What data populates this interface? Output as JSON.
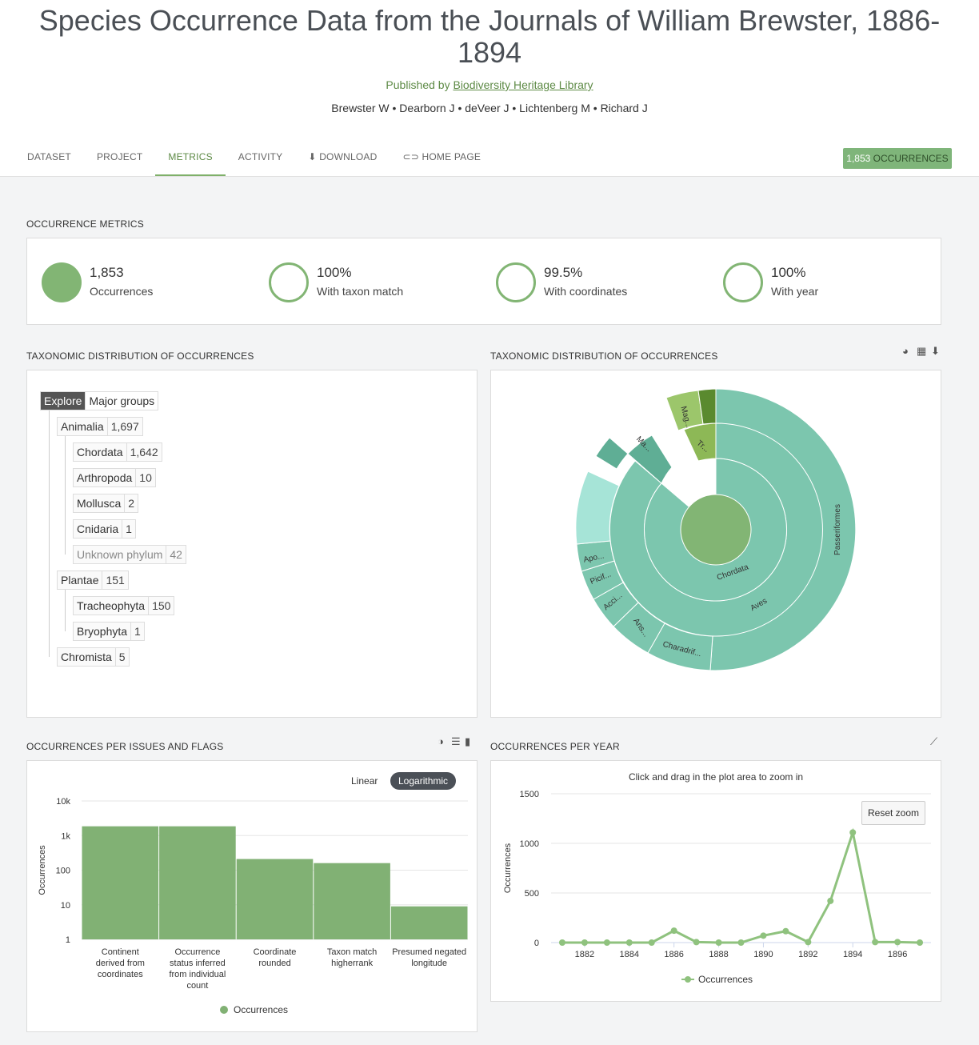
{
  "header": {
    "title": "Species Occurrence Data from the Journals of William Brewster, 1886-1894",
    "published_prefix": "Published by",
    "publisher": "Biodiversity Heritage Library",
    "authors": "Brewster W • Dearborn J • deVeer J • Lichtenberg M • Richard J"
  },
  "tabs": [
    "DATASET",
    "PROJECT",
    "METRICS",
    "ACTIVITY",
    "DOWNLOAD",
    "HOME PAGE"
  ],
  "occurrences_button": {
    "count": "1,853",
    "label": "OCCURRENCES"
  },
  "metrics_section": {
    "title": "OCCURRENCE METRICS",
    "items": [
      {
        "value": "1,853",
        "label": "Occurrences",
        "fraction": 1.0
      },
      {
        "value": "100%",
        "label": "With taxon match",
        "fraction": 1.0
      },
      {
        "value": "99.5%",
        "label": "With coordinates",
        "fraction": 0.995
      },
      {
        "value": "100%",
        "label": "With year",
        "fraction": 1.0
      }
    ]
  },
  "taxonomy_tree": {
    "title": "TAXONOMIC DISTRIBUTION OF OCCURRENCES",
    "tab_explore": "Explore",
    "tab_major": "Major groups",
    "nodes": [
      {
        "name": "Animalia",
        "count": "1,697"
      },
      {
        "name": "Chordata",
        "count": "1,642"
      },
      {
        "name": "Arthropoda",
        "count": "10"
      },
      {
        "name": "Mollusca",
        "count": "2"
      },
      {
        "name": "Cnidaria",
        "count": "1"
      },
      {
        "name": "Unknown phylum",
        "count": "42"
      },
      {
        "name": "Plantae",
        "count": "151"
      },
      {
        "name": "Tracheophyta",
        "count": "150"
      },
      {
        "name": "Bryophyta",
        "count": "1"
      },
      {
        "name": "Chromista",
        "count": "5"
      }
    ]
  },
  "sunburst": {
    "title": "TAXONOMIC DISTRIBUTION OF OCCURRENCES",
    "labels": [
      "Passeriformes",
      "Aves",
      "Chordata",
      "Charadrif...",
      "Ans...",
      "Acci...",
      "Picif...",
      "Apo...",
      "Ma...",
      "Mag...",
      "Tr..."
    ],
    "colors": {
      "animal": "#7cc6ae",
      "plant": "#8db856",
      "center": "#82b574"
    }
  },
  "issues_chart": {
    "title": "OCCURRENCES PER ISSUES AND FLAGS",
    "toggle_linear": "Linear",
    "toggle_log": "Logarithmic",
    "ylabel": "Occurrences",
    "legend": "Occurrences",
    "color": "#81b174"
  },
  "year_chart": {
    "title": "OCCURRENCES PER YEAR",
    "subtitle": "Click and drag in the plot area to zoom in",
    "reset_zoom": "Reset zoom",
    "ylabel": "Occurrences",
    "legend": "Occurrences",
    "color": "#8fc27e"
  },
  "chart_data": [
    {
      "type": "bar",
      "title": "",
      "ylabel": "Occurrences",
      "yscale": "log",
      "ylim": [
        1,
        10000
      ],
      "yticks": [
        "1",
        "10",
        "100",
        "1k",
        "10k"
      ],
      "categories": [
        "Continent derived from coordinates",
        "Occurrence status inferred from individual count",
        "Coordinate rounded",
        "Taxon match higherrank",
        "Presumed negated longitude"
      ],
      "series": [
        {
          "name": "Occurrences",
          "values": [
            1853,
            1853,
            210,
            160,
            9
          ]
        }
      ],
      "legend": "bottom-center",
      "grid": true
    },
    {
      "type": "line",
      "title": "",
      "ylabel": "Occurrences",
      "x": [
        1881,
        1882,
        1883,
        1884,
        1885,
        1886,
        1887,
        1888,
        1889,
        1890,
        1891,
        1892,
        1893,
        1894,
        1895,
        1896,
        1897
      ],
      "series": [
        {
          "name": "Occurrences",
          "values": [
            0,
            0,
            0,
            0,
            0,
            120,
            5,
            0,
            0,
            70,
            115,
            5,
            420,
            1110,
            5,
            5,
            0
          ]
        }
      ],
      "xticks": [
        "1882",
        "1884",
        "1886",
        "1888",
        "1890",
        "1892",
        "1894",
        "1896"
      ],
      "yticks": [
        "0",
        "500",
        "1000",
        "1500"
      ],
      "ylim": [
        0,
        1500
      ],
      "legend": "bottom-center",
      "grid": true
    }
  ]
}
